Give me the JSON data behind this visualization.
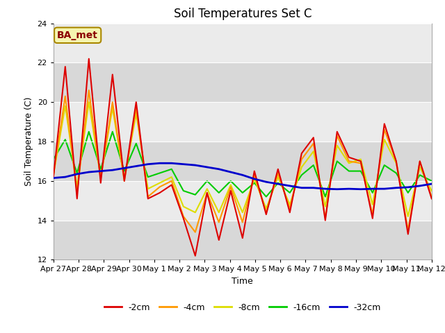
{
  "title": "Soil Temperatures Set C",
  "xlabel": "Time",
  "ylabel": "Soil Temperature (C)",
  "ylim": [
    12,
    24
  ],
  "yticks": [
    12,
    14,
    16,
    18,
    20,
    22,
    24
  ],
  "fig_bg_color": "#ffffff",
  "plot_bg_color": "#e8e8e8",
  "band_light": "#ebebeb",
  "band_dark": "#d8d8d8",
  "annotation_text": "BA_met",
  "annotation_bg": "#f5f5b0",
  "annotation_border": "#aa8800",
  "annotation_text_color": "#8b0000",
  "series_colors": {
    "-2cm": "#dd0000",
    "-4cm": "#ff9900",
    "-8cm": "#dddd00",
    "-16cm": "#00cc00",
    "-32cm": "#0000cc"
  },
  "x_tick_labels": [
    "Apr 27",
    "Apr 28",
    "Apr 29",
    "Apr 30",
    "May 1",
    "May 2",
    "May 3",
    "May 4",
    "May 5",
    "May 6",
    "May 7",
    "May 8",
    "May 9",
    "May 10",
    "May 11",
    "May 12"
  ],
  "x_tick_positions": [
    0,
    1,
    2,
    3,
    4,
    5,
    6,
    7,
    8,
    9,
    10,
    11,
    12,
    13,
    14,
    15
  ],
  "data_2cm": [
    16.2,
    21.8,
    15.1,
    22.2,
    15.9,
    21.4,
    16.0,
    20.0,
    15.1,
    15.4,
    15.8,
    14.1,
    12.2,
    15.4,
    13.0,
    15.5,
    13.1,
    16.5,
    14.3,
    16.6,
    14.4,
    17.4,
    18.2,
    14.0,
    18.5,
    17.2,
    17.0,
    14.1,
    18.9,
    17.0,
    13.3,
    17.0,
    15.1
  ],
  "data_4cm": [
    16.3,
    20.3,
    15.4,
    20.6,
    16.1,
    20.0,
    16.0,
    19.7,
    15.2,
    15.7,
    16.0,
    14.2,
    13.4,
    15.4,
    13.9,
    15.7,
    13.9,
    16.3,
    14.4,
    16.4,
    14.6,
    17.1,
    17.9,
    14.1,
    18.3,
    17.0,
    16.9,
    14.3,
    18.6,
    17.0,
    13.5,
    17.0,
    15.2
  ],
  "data_8cm": [
    16.3,
    19.8,
    15.7,
    20.0,
    16.2,
    19.7,
    16.1,
    19.4,
    15.6,
    15.9,
    16.2,
    14.7,
    14.4,
    15.6,
    14.4,
    15.8,
    14.4,
    16.1,
    14.6,
    16.2,
    14.8,
    16.7,
    17.5,
    14.7,
    17.8,
    16.9,
    17.1,
    14.8,
    18.1,
    16.9,
    14.2,
    16.7,
    15.5
  ],
  "data_16cm": [
    17.1,
    18.1,
    16.4,
    18.5,
    16.6,
    18.5,
    16.5,
    17.9,
    16.2,
    16.4,
    16.6,
    15.5,
    15.3,
    16.0,
    15.4,
    16.0,
    15.4,
    15.9,
    15.2,
    15.9,
    15.4,
    16.3,
    16.8,
    15.2,
    17.0,
    16.5,
    16.5,
    15.4,
    16.8,
    16.4,
    15.4,
    16.3,
    16.0
  ],
  "data_32cm": [
    16.15,
    16.2,
    16.35,
    16.45,
    16.5,
    16.55,
    16.65,
    16.75,
    16.85,
    16.9,
    16.9,
    16.85,
    16.8,
    16.7,
    16.6,
    16.45,
    16.3,
    16.1,
    15.95,
    15.85,
    15.75,
    15.65,
    15.65,
    15.6,
    15.58,
    15.6,
    15.58,
    15.6,
    15.6,
    15.65,
    15.68,
    15.75,
    15.85
  ]
}
